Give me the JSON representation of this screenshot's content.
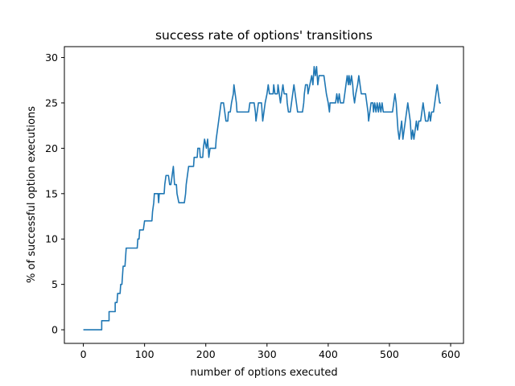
{
  "chart_data": {
    "type": "line",
    "title": "success rate of options' transitions",
    "xlabel": "number of options executed",
    "ylabel": "% of successful option executions",
    "xlim": [
      -31,
      621
    ],
    "ylim": [
      -1.5,
      31.2
    ],
    "xticks": [
      0,
      100,
      200,
      300,
      400,
      500,
      600
    ],
    "yticks": [
      0,
      5,
      10,
      15,
      20,
      25,
      30
    ],
    "grid": false,
    "legend": "none",
    "series": [
      {
        "color": "#1f77b4",
        "points": [
          [
            0,
            0
          ],
          [
            30,
            0
          ],
          [
            30,
            1
          ],
          [
            42,
            1
          ],
          [
            42,
            2
          ],
          [
            52,
            2
          ],
          [
            52,
            3
          ],
          [
            55,
            3
          ],
          [
            56,
            4
          ],
          [
            60,
            4
          ],
          [
            61,
            5
          ],
          [
            63,
            5
          ],
          [
            64,
            6
          ],
          [
            65,
            7
          ],
          [
            68,
            7
          ],
          [
            69,
            8
          ],
          [
            70,
            9
          ],
          [
            88,
            9
          ],
          [
            89,
            10
          ],
          [
            91,
            10
          ],
          [
            92,
            11
          ],
          [
            98,
            11
          ],
          [
            100,
            12
          ],
          [
            112,
            12
          ],
          [
            113,
            13
          ],
          [
            115,
            14
          ],
          [
            116,
            15
          ],
          [
            122,
            15
          ],
          [
            123,
            14
          ],
          [
            124,
            15
          ],
          [
            132,
            15
          ],
          [
            133,
            16
          ],
          [
            135,
            17
          ],
          [
            139,
            17
          ],
          [
            141,
            16
          ],
          [
            143,
            16
          ],
          [
            145,
            17
          ],
          [
            147,
            18
          ],
          [
            149,
            16
          ],
          [
            152,
            16
          ],
          [
            153,
            15
          ],
          [
            156,
            14
          ],
          [
            165,
            14
          ],
          [
            167,
            15
          ],
          [
            168,
            16
          ],
          [
            170,
            17
          ],
          [
            172,
            18
          ],
          [
            180,
            18
          ],
          [
            181,
            19
          ],
          [
            186,
            19
          ],
          [
            187,
            20
          ],
          [
            190,
            20
          ],
          [
            191,
            19
          ],
          [
            195,
            19
          ],
          [
            196,
            20
          ],
          [
            198,
            21
          ],
          [
            201,
            20
          ],
          [
            203,
            21
          ],
          [
            205,
            19
          ],
          [
            207,
            20
          ],
          [
            216,
            20
          ],
          [
            217,
            21
          ],
          [
            219,
            22
          ],
          [
            221,
            23
          ],
          [
            223,
            24
          ],
          [
            225,
            25
          ],
          [
            229,
            25
          ],
          [
            231,
            24
          ],
          [
            233,
            23
          ],
          [
            236,
            23
          ],
          [
            237,
            24
          ],
          [
            240,
            24
          ],
          [
            242,
            25
          ],
          [
            245,
            26
          ],
          [
            246,
            27
          ],
          [
            248,
            26
          ],
          [
            250,
            25
          ],
          [
            251,
            24
          ],
          [
            270,
            24
          ],
          [
            272,
            25
          ],
          [
            279,
            25
          ],
          [
            281,
            24
          ],
          [
            282,
            23
          ],
          [
            284,
            24
          ],
          [
            286,
            25
          ],
          [
            291,
            25
          ],
          [
            292,
            24
          ],
          [
            293,
            23
          ],
          [
            295,
            24
          ],
          [
            297,
            25
          ],
          [
            300,
            26
          ],
          [
            302,
            27
          ],
          [
            304,
            26
          ],
          [
            310,
            26
          ],
          [
            311,
            27
          ],
          [
            313,
            26
          ],
          [
            317,
            26
          ],
          [
            318,
            27
          ],
          [
            320,
            26
          ],
          [
            322,
            25
          ],
          [
            324,
            26
          ],
          [
            326,
            27
          ],
          [
            328,
            26
          ],
          [
            332,
            26
          ],
          [
            333,
            25
          ],
          [
            335,
            24
          ],
          [
            338,
            24
          ],
          [
            340,
            25
          ],
          [
            342,
            26
          ],
          [
            344,
            27
          ],
          [
            346,
            26
          ],
          [
            348,
            25
          ],
          [
            350,
            24
          ],
          [
            358,
            24
          ],
          [
            360,
            25
          ],
          [
            361,
            26
          ],
          [
            363,
            27
          ],
          [
            366,
            27
          ],
          [
            367,
            26
          ],
          [
            370,
            27
          ],
          [
            373,
            28
          ],
          [
            375,
            27
          ],
          [
            377,
            29
          ],
          [
            379,
            28
          ],
          [
            381,
            29
          ],
          [
            383,
            27
          ],
          [
            385,
            28
          ],
          [
            393,
            28
          ],
          [
            395,
            27
          ],
          [
            397,
            26
          ],
          [
            400,
            25
          ],
          [
            402,
            24
          ],
          [
            403,
            25
          ],
          [
            412,
            25
          ],
          [
            414,
            26
          ],
          [
            416,
            25
          ],
          [
            418,
            26
          ],
          [
            420,
            25
          ],
          [
            425,
            25
          ],
          [
            427,
            26
          ],
          [
            429,
            27
          ],
          [
            431,
            28
          ],
          [
            433,
            27
          ],
          [
            434,
            28
          ],
          [
            436,
            27
          ],
          [
            438,
            28
          ],
          [
            440,
            27
          ],
          [
            441,
            26
          ],
          [
            443,
            25
          ],
          [
            445,
            26
          ],
          [
            448,
            27
          ],
          [
            450,
            28
          ],
          [
            452,
            27
          ],
          [
            454,
            26
          ],
          [
            461,
            26
          ],
          [
            463,
            25
          ],
          [
            465,
            24
          ],
          [
            466,
            23
          ],
          [
            468,
            24
          ],
          [
            470,
            25
          ],
          [
            473,
            25
          ],
          [
            474,
            24
          ],
          [
            476,
            25
          ],
          [
            478,
            24
          ],
          [
            480,
            25
          ],
          [
            482,
            24
          ],
          [
            484,
            25
          ],
          [
            486,
            24
          ],
          [
            488,
            25
          ],
          [
            490,
            24
          ],
          [
            505,
            24
          ],
          [
            507,
            25
          ],
          [
            509,
            26
          ],
          [
            511,
            25
          ],
          [
            512,
            24
          ],
          [
            514,
            22
          ],
          [
            516,
            21
          ],
          [
            518,
            22
          ],
          [
            520,
            23
          ],
          [
            522,
            21
          ],
          [
            524,
            22
          ],
          [
            526,
            23
          ],
          [
            528,
            24
          ],
          [
            530,
            25
          ],
          [
            532,
            24
          ],
          [
            534,
            23
          ],
          [
            536,
            21
          ],
          [
            538,
            22
          ],
          [
            540,
            21
          ],
          [
            542,
            22
          ],
          [
            544,
            23
          ],
          [
            546,
            22
          ],
          [
            548,
            23
          ],
          [
            551,
            23
          ],
          [
            553,
            24
          ],
          [
            555,
            25
          ],
          [
            557,
            24
          ],
          [
            559,
            23
          ],
          [
            563,
            23
          ],
          [
            565,
            24
          ],
          [
            567,
            23
          ],
          [
            569,
            24
          ],
          [
            572,
            24
          ],
          [
            574,
            25
          ],
          [
            576,
            26
          ],
          [
            578,
            27
          ],
          [
            580,
            26
          ],
          [
            582,
            25
          ],
          [
            584,
            25
          ]
        ]
      }
    ]
  }
}
